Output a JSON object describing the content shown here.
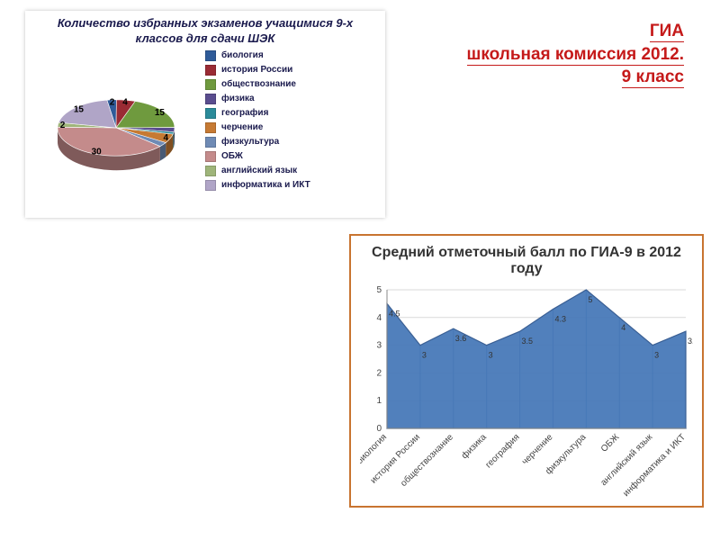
{
  "heading": {
    "line1": "ГИА",
    "line2": "школьная комиссия 2012.",
    "line3": "9 класс",
    "color": "#c51a1a"
  },
  "pie": {
    "type": "pie",
    "title": "Количество избранных экзаменов учащимися  9-х классов для сдачи ШЭК",
    "title_color": "#1a1a4d",
    "card_shadow": "#00000040",
    "slices": [
      {
        "label": "биология",
        "value": 2,
        "color": "#2f5b99",
        "show_label": "2"
      },
      {
        "label": "история России",
        "value": 4,
        "color": "#9a2b34",
        "show_label": "4"
      },
      {
        "label": "обществознание",
        "value": 15,
        "color": "#6f9a3e",
        "show_label": "15"
      },
      {
        "label": "физика",
        "value": 2,
        "color": "#5a4d8f",
        "show_label": null
      },
      {
        "label": "география",
        "value": 1,
        "color": "#2b8b9a",
        "show_label": null
      },
      {
        "label": "черчение",
        "value": 4,
        "color": "#c67a33",
        "show_label": "4"
      },
      {
        "label": "физкультура",
        "value": 2,
        "color": "#6f8bb5",
        "show_label": null
      },
      {
        "label": "ОБЖ",
        "value": 30,
        "color": "#c48b8b",
        "show_label": "30"
      },
      {
        "label": "английский язык",
        "value": 2,
        "color": "#9fb57a",
        "show_label": "2"
      },
      {
        "label": "информатика и ИКТ",
        "value": 15,
        "color": "#b0a5c7",
        "show_label": "15"
      }
    ],
    "radius": 65,
    "depth": 16,
    "tilt": 0.48
  },
  "area": {
    "type": "area",
    "title": "Средний отметочный балл по  ГИА-9 в 2012 году",
    "border_color": "#c87430",
    "fill_color": "#4879b8",
    "line_color": "#3a5f94",
    "grid_color": "#d9d9d9",
    "axis_color": "#888888",
    "background": "#ffffff",
    "ylim": [
      0,
      5
    ],
    "ytick_step": 1,
    "categories": [
      "биология",
      "история России",
      "обществознание",
      "физика",
      "география",
      "черчение",
      "физкультура",
      "ОБЖ",
      "английский язык",
      "информатика и ИКТ"
    ],
    "values": [
      4.5,
      3,
      3.6,
      3,
      3.5,
      4.3,
      5,
      4,
      3,
      3.5
    ],
    "value_fontsize": 9,
    "cat_fontsize": 10,
    "axis_fontsize": 10
  }
}
